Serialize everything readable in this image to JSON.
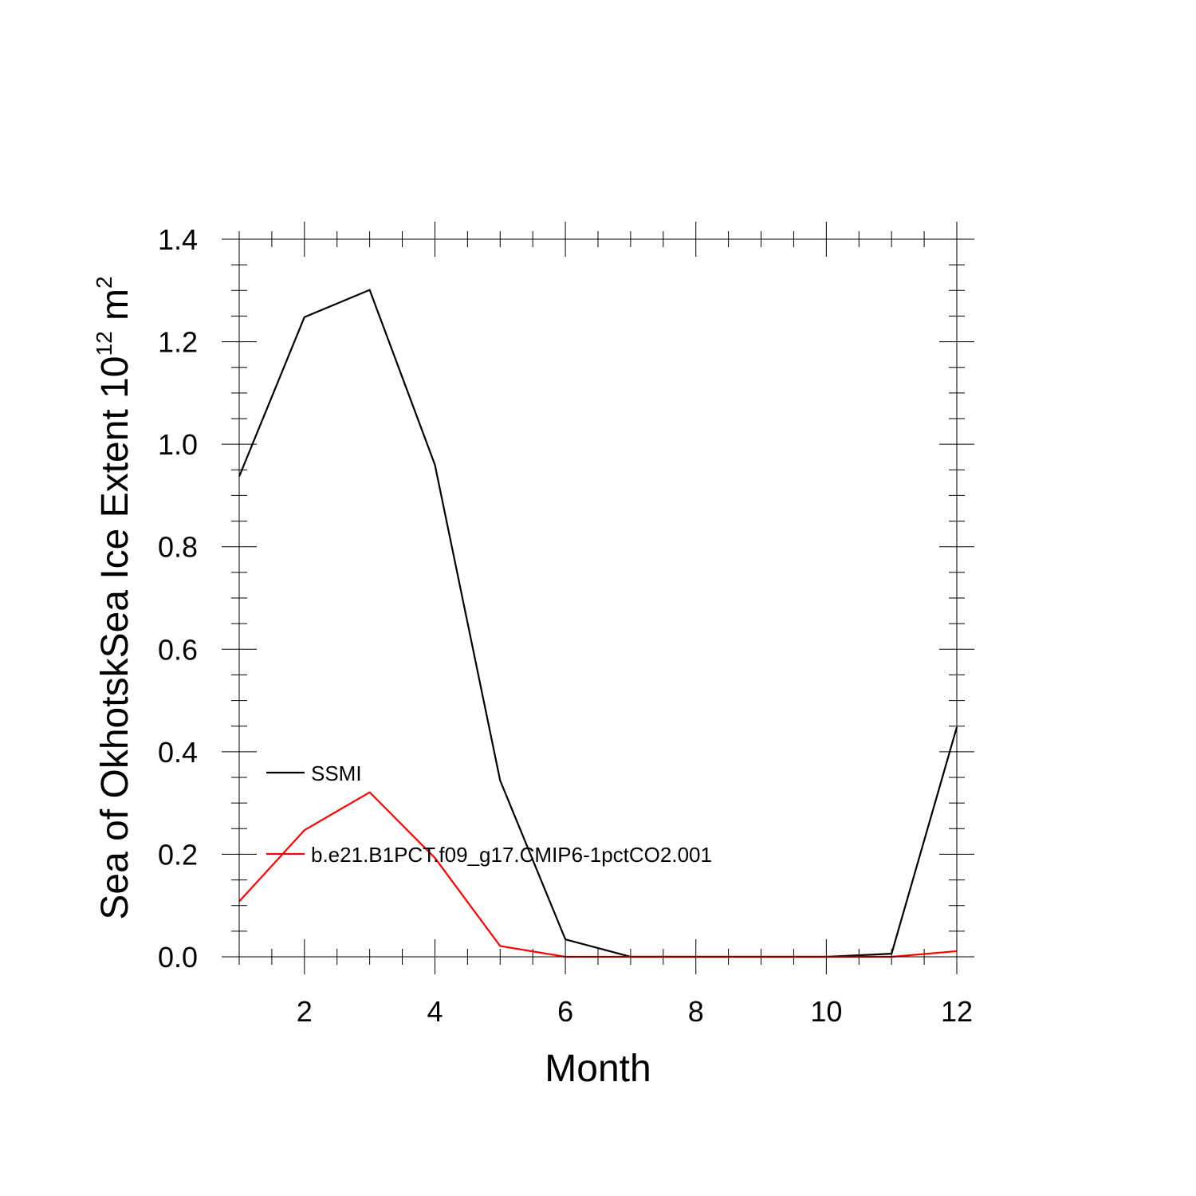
{
  "chart_data": {
    "type": "line",
    "xlabel": "Month",
    "ylabel": {
      "prefix": "Sea of OkhotskSea Ice Extent 10",
      "exponent_1": "12",
      "middle": " m",
      "exponent_2": "2"
    },
    "xlim": [
      1,
      12
    ],
    "ylim": [
      0,
      1.4
    ],
    "xticks": [
      2,
      4,
      6,
      8,
      10,
      12
    ],
    "xtick_labels": [
      "2",
      "4",
      "6",
      "8",
      "10",
      "12"
    ],
    "yticks": [
      0,
      0.2,
      0.4,
      0.6,
      0.8,
      1.0,
      1.2,
      1.4
    ],
    "ytick_labels": [
      "0.0",
      "0.2",
      "0.4",
      "0.6",
      "0.8",
      "1.0",
      "1.2",
      "1.4"
    ],
    "grid": false,
    "legend_position": "lower-left",
    "x": [
      1,
      2,
      3,
      4,
      5,
      6,
      7,
      8,
      9,
      10,
      11,
      12
    ],
    "series": [
      {
        "name": "SSMI",
        "color": "#000000",
        "values": [
          0.937,
          1.248,
          1.301,
          0.96,
          0.344,
          0.034,
          0.0,
          0.0,
          0.0,
          0.0,
          0.006,
          0.448
        ]
      },
      {
        "name": "b.e21.B1PCT.f09_g17.CMIP6-1pctCO2.001",
        "color": "#ff0000",
        "values": [
          0.108,
          0.247,
          0.321,
          0.193,
          0.021,
          0.0,
          0.0,
          0.0,
          0.0,
          0.0,
          0.0,
          0.011
        ]
      }
    ]
  }
}
